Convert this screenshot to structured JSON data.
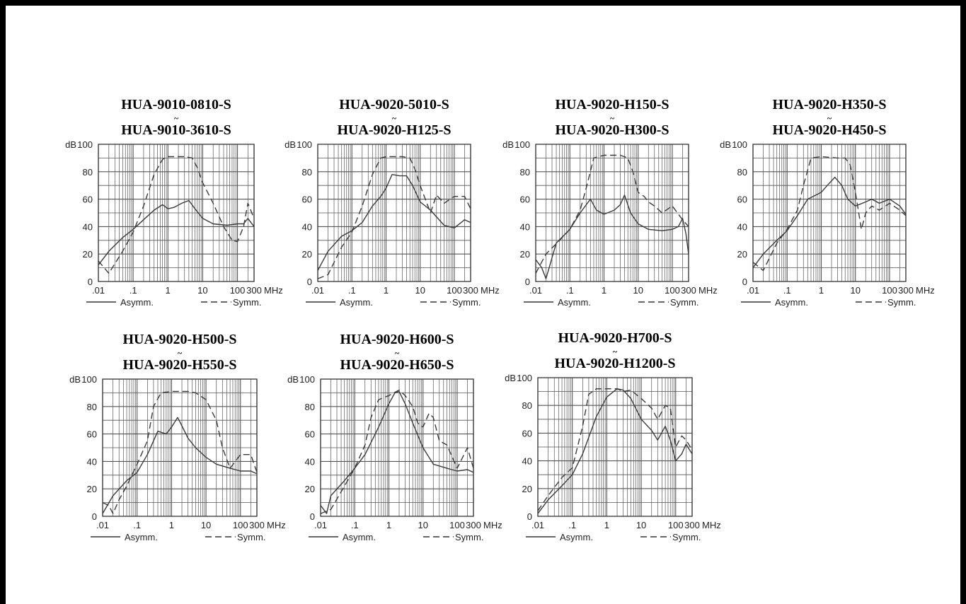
{
  "chart_data": [
    {
      "type": "line",
      "title": "HUA-9010-0810-S",
      "subtitle": "HUA-9010-3610-S",
      "range_mark": "~",
      "ylabel": "dB",
      "xlabel": "MHz",
      "xscale": "log",
      "xlim": [
        0.01,
        300
      ],
      "ylim": [
        0,
        100
      ],
      "x_ticks": [
        ".01",
        ".1",
        "1",
        "10",
        "100",
        "300"
      ],
      "y_ticks": [
        "0",
        "20",
        "40",
        "60",
        "80",
        "100"
      ],
      "grid": true,
      "legend": {
        "solid": "Asymm.",
        "dashed": "Symm."
      },
      "series": [
        {
          "name": "Asymm.",
          "style": "solid",
          "x": [
            0.01,
            0.02,
            0.05,
            0.1,
            0.2,
            0.4,
            0.7,
            1,
            1.5,
            2.5,
            4,
            6,
            10,
            20,
            50,
            100,
            150,
            200,
            300
          ],
          "y": [
            12,
            22,
            32,
            38,
            45,
            52,
            56,
            53,
            54,
            57,
            59,
            53,
            46,
            42,
            41,
            42,
            42,
            46,
            40
          ]
        },
        {
          "name": "Symm.",
          "style": "dashed",
          "x": [
            0.01,
            0.02,
            0.05,
            0.1,
            0.2,
            0.4,
            0.7,
            1,
            3,
            5,
            7,
            10,
            20,
            40,
            70,
            100,
            150,
            200,
            300
          ],
          "y": [
            15,
            6,
            22,
            36,
            55,
            78,
            89,
            91,
            91,
            90,
            83,
            72,
            57,
            40,
            30,
            29,
            40,
            57,
            46
          ]
        }
      ]
    },
    {
      "type": "line",
      "title": "HUA-9020-5010-S",
      "subtitle": "HUA-9020-H125-S",
      "range_mark": "~",
      "ylabel": "dB",
      "xlabel": "MHz",
      "xscale": "log",
      "xlim": [
        0.01,
        300
      ],
      "ylim": [
        0,
        100
      ],
      "x_ticks": [
        ".01",
        ".1",
        "1",
        "10",
        "100",
        "300"
      ],
      "y_ticks": [
        "0",
        "20",
        "40",
        "60",
        "80",
        "100"
      ],
      "grid": true,
      "legend": {
        "solid": "Asymm.",
        "dashed": "Symm."
      },
      "series": [
        {
          "name": "Asymm.",
          "style": "solid",
          "x": [
            0.01,
            0.02,
            0.05,
            0.1,
            0.2,
            0.4,
            0.7,
            1,
            1.5,
            2.5,
            4,
            6,
            10,
            20,
            50,
            100,
            200,
            300
          ],
          "y": [
            8,
            22,
            33,
            37,
            43,
            55,
            62,
            68,
            78,
            77,
            77,
            70,
            58,
            52,
            41,
            39,
            45,
            43
          ]
        },
        {
          "name": "Symm.",
          "style": "dashed",
          "x": [
            0.01,
            0.02,
            0.05,
            0.1,
            0.2,
            0.4,
            0.7,
            1,
            3,
            5,
            7,
            10,
            20,
            30,
            50,
            100,
            200,
            300
          ],
          "y": [
            2,
            5,
            25,
            36,
            55,
            78,
            90,
            91,
            91,
            90,
            82,
            70,
            50,
            63,
            57,
            62,
            62,
            53
          ]
        }
      ]
    },
    {
      "type": "line",
      "title": "HUA-9020-H150-S",
      "subtitle": "HUA-9020-H300-S",
      "range_mark": "~",
      "ylabel": "dB",
      "xlabel": "MHz",
      "xscale": "log",
      "xlim": [
        0.01,
        300
      ],
      "ylim": [
        0,
        100
      ],
      "x_ticks": [
        ".01",
        ".1",
        "1",
        "10",
        "100",
        "300"
      ],
      "y_ticks": [
        "0",
        "20",
        "40",
        "60",
        "80",
        "100"
      ],
      "grid": true,
      "legend": {
        "solid": "Asymm.",
        "dashed": "Symm."
      },
      "series": [
        {
          "name": "Asymm.",
          "style": "solid",
          "x": [
            0.01,
            0.015,
            0.02,
            0.04,
            0.1,
            0.2,
            0.4,
            0.6,
            1,
            2,
            3,
            4,
            6,
            10,
            20,
            50,
            100,
            150,
            200,
            250,
            300
          ],
          "y": [
            16,
            10,
            2,
            28,
            38,
            50,
            60,
            52,
            49,
            52,
            56,
            63,
            50,
            42,
            38,
            37,
            38,
            40,
            46,
            35,
            20
          ]
        },
        {
          "name": "Symm.",
          "style": "dashed",
          "x": [
            0.01,
            0.02,
            0.05,
            0.1,
            0.2,
            0.3,
            0.5,
            1,
            3,
            5,
            7,
            10,
            15,
            20,
            30,
            50,
            100,
            200,
            300
          ],
          "y": [
            6,
            20,
            30,
            38,
            52,
            68,
            90,
            92,
            92,
            90,
            80,
            65,
            62,
            58,
            55,
            50,
            55,
            45,
            40
          ]
        }
      ]
    },
    {
      "type": "line",
      "title": "HUA-9020-H350-S",
      "subtitle": "HUA-9020-H450-S",
      "range_mark": "~",
      "ylabel": "dB",
      "xlabel": "MHz",
      "xscale": "log",
      "xlim": [
        0.01,
        300
      ],
      "ylim": [
        0,
        100
      ],
      "x_ticks": [
        ".01",
        ".1",
        "1",
        "10",
        "100",
        "300"
      ],
      "y_ticks": [
        "0",
        "20",
        "40",
        "60",
        "80",
        "100"
      ],
      "grid": true,
      "legend": {
        "solid": "Asymm.",
        "dashed": "Symm."
      },
      "series": [
        {
          "name": "Asymm.",
          "style": "solid",
          "x": [
            0.01,
            0.02,
            0.05,
            0.1,
            0.2,
            0.4,
            0.7,
            1,
            1.5,
            2.5,
            4,
            6,
            10,
            20,
            30,
            50,
            100,
            200,
            300
          ],
          "y": [
            10,
            20,
            30,
            37,
            48,
            60,
            63,
            65,
            70,
            76,
            70,
            60,
            55,
            58,
            60,
            57,
            60,
            55,
            49
          ]
        },
        {
          "name": "Symm.",
          "style": "dashed",
          "x": [
            0.01,
            0.02,
            0.05,
            0.1,
            0.2,
            0.3,
            0.5,
            1,
            3,
            5,
            7,
            10,
            15,
            20,
            30,
            50,
            100,
            200,
            300
          ],
          "y": [
            14,
            8,
            28,
            38,
            52,
            70,
            90,
            91,
            90,
            90,
            85,
            65,
            38,
            50,
            55,
            52,
            57,
            52,
            48
          ]
        }
      ]
    },
    {
      "type": "line",
      "title": "HUA-9020-H500-S",
      "subtitle": "HUA-9020-H550-S",
      "range_mark": "~",
      "ylabel": "dB",
      "xlabel": "MHz",
      "xscale": "log",
      "xlim": [
        0.01,
        300
      ],
      "ylim": [
        0,
        100
      ],
      "x_ticks": [
        ".01",
        ".1",
        "1",
        "10",
        "100",
        "300"
      ],
      "y_ticks": [
        "0",
        "20",
        "40",
        "60",
        "80",
        "100"
      ],
      "grid": true,
      "legend": {
        "solid": "Asymm.",
        "dashed": "Symm."
      },
      "series": [
        {
          "name": "Asymm.",
          "style": "solid",
          "x": [
            0.01,
            0.02,
            0.05,
            0.1,
            0.2,
            0.4,
            0.7,
            1,
            1.5,
            2,
            3,
            5,
            10,
            20,
            50,
            100,
            200,
            300
          ],
          "y": [
            2,
            15,
            26,
            32,
            45,
            62,
            60,
            65,
            72,
            66,
            57,
            50,
            43,
            38,
            35,
            33,
            33,
            31
          ]
        },
        {
          "name": "Symm.",
          "style": "dashed",
          "x": [
            0.01,
            0.015,
            0.02,
            0.03,
            0.05,
            0.1,
            0.2,
            0.3,
            0.5,
            1,
            3,
            5,
            10,
            20,
            30,
            50,
            100,
            200,
            300
          ],
          "y": [
            10,
            8,
            2,
            12,
            22,
            38,
            55,
            80,
            90,
            91,
            91,
            90,
            85,
            70,
            50,
            35,
            45,
            45,
            32
          ]
        }
      ]
    },
    {
      "type": "line",
      "title": "HUA-9020-H600-S",
      "subtitle": "HUA-9020-H650-S",
      "range_mark": "~",
      "ylabel": "dB",
      "xlabel": "MHz",
      "xscale": "log",
      "xlim": [
        0.01,
        300
      ],
      "ylim": [
        0,
        100
      ],
      "x_ticks": [
        ".01",
        ".1",
        "1",
        "10",
        "100",
        "300"
      ],
      "y_ticks": [
        "0",
        "20",
        "40",
        "60",
        "80",
        "100"
      ],
      "grid": true,
      "legend": {
        "solid": "Asymm.",
        "dashed": "Symm."
      },
      "series": [
        {
          "name": "Asymm.",
          "style": "solid",
          "x": [
            0.01,
            0.015,
            0.02,
            0.05,
            0.1,
            0.2,
            0.5,
            1,
            1.5,
            2,
            3,
            5,
            10,
            20,
            50,
            100,
            200,
            300
          ],
          "y": [
            8,
            2,
            15,
            26,
            35,
            45,
            65,
            82,
            90,
            91,
            82,
            68,
            50,
            38,
            35,
            33,
            34,
            32
          ]
        },
        {
          "name": "Symm.",
          "style": "dashed",
          "x": [
            0.01,
            0.02,
            0.05,
            0.1,
            0.2,
            0.3,
            0.5,
            1,
            2,
            3,
            5,
            7,
            10,
            15,
            20,
            30,
            50,
            100,
            200,
            300
          ],
          "y": [
            2,
            5,
            22,
            35,
            52,
            72,
            85,
            88,
            92,
            88,
            80,
            68,
            65,
            75,
            72,
            55,
            52,
            35,
            50,
            35
          ]
        }
      ]
    },
    {
      "type": "line",
      "title": "HUA-9020-H700-S",
      "subtitle": "HUA-9020-H1200-S",
      "range_mark": "~",
      "ylabel": "dB",
      "xlabel": "MHz",
      "xscale": "log",
      "xlim": [
        0.01,
        300
      ],
      "ylim": [
        0,
        100
      ],
      "x_ticks": [
        ".01",
        ".1",
        "1",
        "10",
        "100",
        "300"
      ],
      "y_ticks": [
        "0",
        "20",
        "40",
        "60",
        "80",
        "100"
      ],
      "grid": true,
      "legend": {
        "solid": "Asymm.",
        "dashed": "Symm."
      },
      "series": [
        {
          "name": "Asymm.",
          "style": "solid",
          "x": [
            0.01,
            0.02,
            0.05,
            0.1,
            0.2,
            0.5,
            1,
            2,
            3,
            5,
            10,
            20,
            30,
            50,
            70,
            100,
            150,
            200,
            300
          ],
          "y": [
            2,
            12,
            22,
            30,
            45,
            72,
            86,
            92,
            91,
            85,
            70,
            62,
            55,
            65,
            55,
            40,
            45,
            52,
            45
          ]
        },
        {
          "name": "Symm.",
          "style": "dashed",
          "x": [
            0.01,
            0.02,
            0.05,
            0.1,
            0.2,
            0.3,
            0.5,
            1,
            2,
            3,
            5,
            10,
            20,
            30,
            50,
            70,
            100,
            150,
            200,
            300
          ],
          "y": [
            4,
            15,
            28,
            35,
            65,
            88,
            92,
            92,
            92,
            90,
            91,
            85,
            78,
            70,
            80,
            78,
            50,
            58,
            55,
            48
          ]
        }
      ]
    }
  ]
}
